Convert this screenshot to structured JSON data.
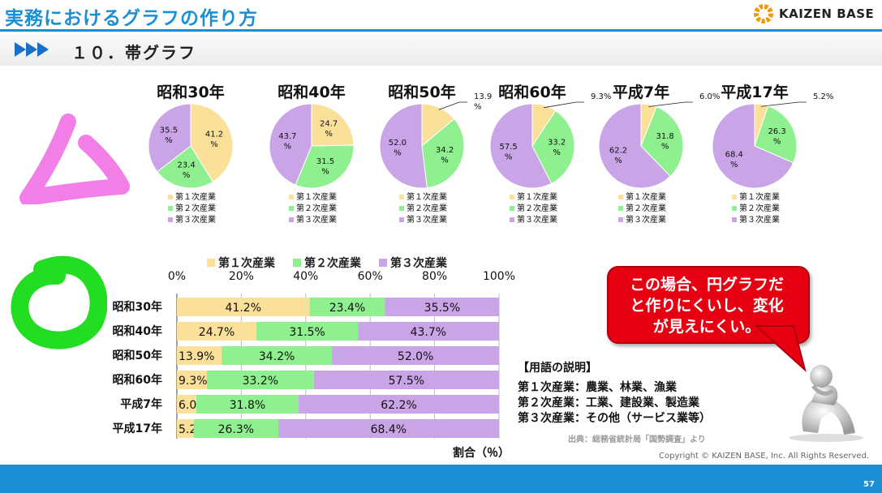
{
  "header": {
    "title": "実務におけるグラフの作り方",
    "logo": "KAIZEN BASE",
    "subtitle": "１０．帯グラフ"
  },
  "colors": {
    "primary": "#fbe09a",
    "secondary": "#8ef08e",
    "tertiary": "#c9a4e6",
    "accent_blue": "#1a8fd6",
    "bubble_red": "#e60012",
    "mark_bad": "#f27ee8",
    "mark_good": "#22dd22"
  },
  "marks": {
    "bad_icon": "triangle-mark-icon",
    "good_icon": "circle-mark-icon"
  },
  "legend": [
    "第１次産業",
    "第２次産業",
    "第３次産業"
  ],
  "pies": [
    {
      "title": "昭和30年",
      "values": [
        41.2,
        23.4,
        35.5
      ],
      "labels": [
        "41.2\n%",
        "23.4\n%",
        "35.5\n%"
      ]
    },
    {
      "title": "昭和40年",
      "values": [
        24.7,
        31.5,
        43.7
      ],
      "labels": [
        "24.7\n%",
        "31.5\n%",
        "43.7\n%"
      ]
    },
    {
      "title": "昭和50年",
      "values": [
        13.9,
        34.2,
        52.0
      ],
      "labels": [
        "13.9\n%",
        "34.2\n%",
        "52.0\n%"
      ]
    },
    {
      "title": "昭和60年",
      "values": [
        9.3,
        33.2,
        57.5
      ],
      "labels": [
        "9.3%",
        "33.2\n%",
        "57.5\n%"
      ]
    },
    {
      "title": "平成7年",
      "values": [
        6.0,
        31.8,
        62.2
      ],
      "labels": [
        "6.0%",
        "31.8\n%",
        "62.2\n%"
      ]
    },
    {
      "title": "平成17年",
      "values": [
        5.2,
        26.3,
        68.4
      ],
      "labels": [
        "5.2%",
        "26.3\n%",
        "68.4\n%"
      ]
    }
  ],
  "chart_data": {
    "type": "bar",
    "stacked": "100%",
    "orientation": "horizontal",
    "categories": [
      "昭和30年",
      "昭和40年",
      "昭和50年",
      "昭和60年",
      "平成7年",
      "平成17年"
    ],
    "series": [
      {
        "name": "第１次産業",
        "values": [
          41.2,
          24.7,
          13.9,
          9.3,
          6.0,
          5.2
        ],
        "labels": [
          "41.2%",
          "24.7%",
          "13.9%",
          "9.3%",
          "6.0%",
          "5.2%"
        ]
      },
      {
        "name": "第２次産業",
        "values": [
          23.4,
          31.5,
          34.2,
          33.2,
          31.8,
          26.3
        ],
        "labels": [
          "23.4%",
          "31.5%",
          "34.2%",
          "33.2%",
          "31.8%",
          "26.3%"
        ]
      },
      {
        "name": "第３次産業",
        "values": [
          35.5,
          43.7,
          52.0,
          57.5,
          62.2,
          68.4
        ],
        "labels": [
          "35.5%",
          "43.7%",
          "52.0%",
          "57.5%",
          "62.2%",
          "68.4%"
        ]
      }
    ],
    "xticks": [
      "0%",
      "20%",
      "40%",
      "60%",
      "80%",
      "100%"
    ],
    "xlim": [
      0,
      100
    ],
    "xlabel": "割合（％）",
    "legend_position": "top",
    "grid": true
  },
  "callout": {
    "text_lines": [
      "この場合、円グラフだ",
      "と作りにくいし、変化",
      "が見えにくい。"
    ]
  },
  "terms": {
    "title": "【用語の説明】",
    "items": [
      "第１次産業：農業、林業、漁業",
      "第２次産業：工業、建設業、製造業",
      "第３次産業：その他（サービス業等）"
    ],
    "source": "出典：総務省統計局「国勢調査」より"
  },
  "footer": {
    "copyright": "Copyright ©  KAIZEN BASE, Inc.  All Rights Reserved.",
    "page": "57"
  }
}
